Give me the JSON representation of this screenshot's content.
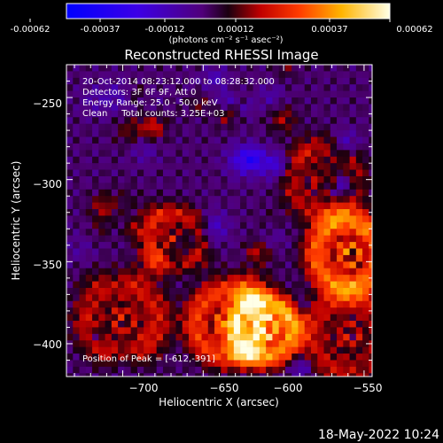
{
  "colorbar": {
    "ticks": [
      "-0.00062",
      "-0.00037",
      "-0.00012",
      "0.00012",
      "0.00037",
      "0.00062"
    ],
    "unit_label": "(photons cm⁻² s⁻¹ asec⁻²)",
    "range": [
      -0.00062,
      0.00062
    ]
  },
  "chart_data": {
    "type": "heatmap",
    "title": "Reconstructed RHESSI Image",
    "xlabel": "Heliocentric X (arcsec)",
    "ylabel": "Heliocentric Y (arcsec)",
    "xlim": [
      -735,
      -545
    ],
    "ylim": [
      -420,
      -230
    ],
    "x_ticks": [
      -700,
      -650,
      -600,
      -550
    ],
    "y_ticks": [
      -250,
      -300,
      -350,
      -400
    ],
    "x_tick_labels": [
      "−700",
      "−650",
      "−600",
      "−550"
    ],
    "y_tick_labels": [
      "−250",
      "−300",
      "−350",
      "−400"
    ],
    "annotations": [
      "20-Oct-2014 08:23:12.000 to 08:28:32.000",
      "Detectors: 3F 6F 9F, Att 0",
      "Energy Range: 25.0 - 50.0 keV",
      "Clean     Total counts: 3.25E+03"
    ],
    "peak_label": "Position of Peak = [-612,-391]",
    "peak_position": [
      -612,
      -391
    ],
    "peak_value": 0.00062
  },
  "footer_timestamp": "18-May-2022 10:24"
}
